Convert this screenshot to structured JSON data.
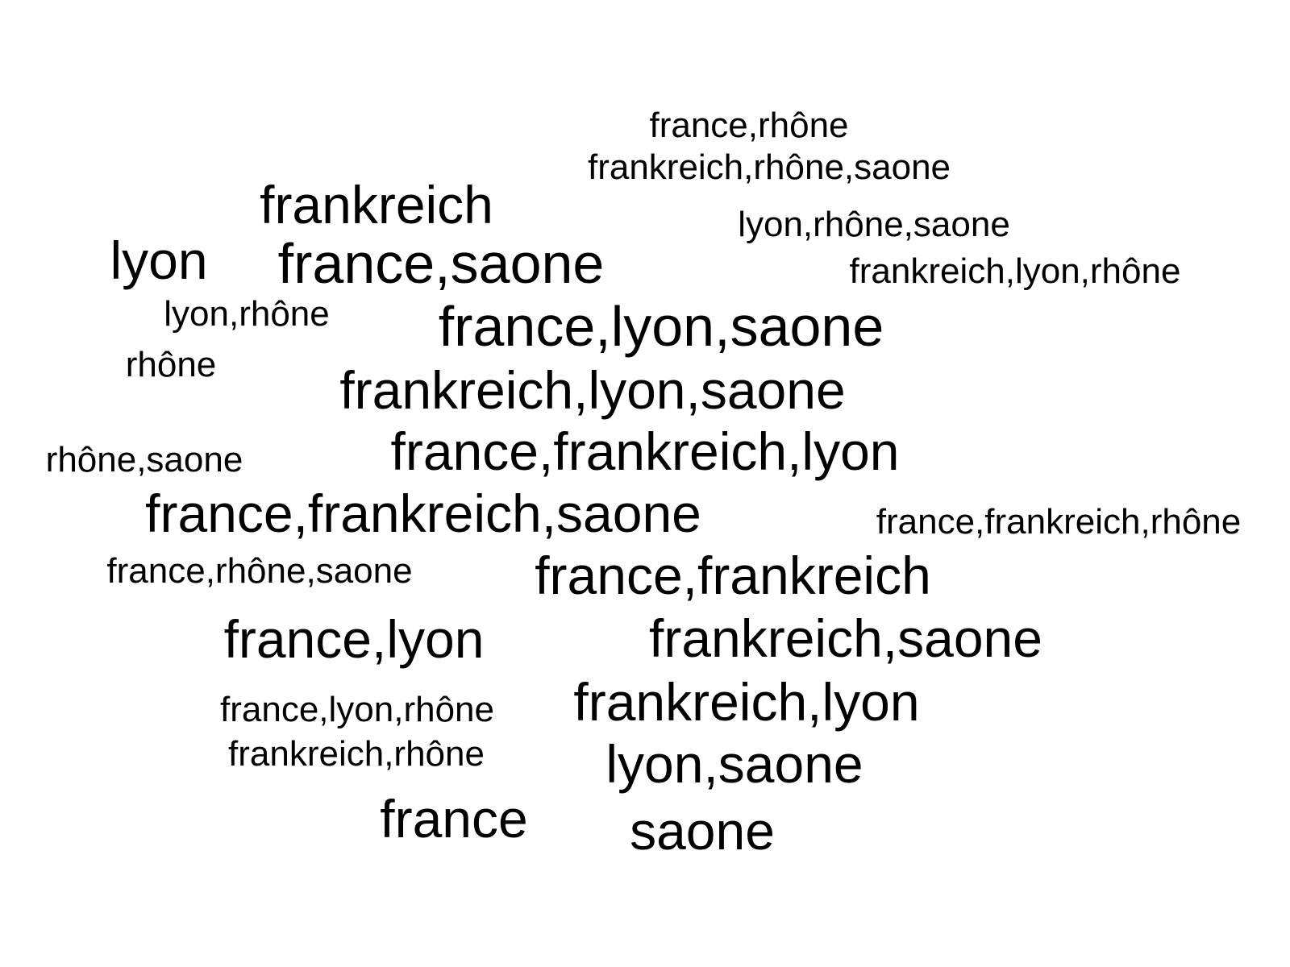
{
  "cloud": {
    "words": [
      {
        "text": "france,rhône"
      },
      {
        "text": "frankreich,rhône,saone"
      },
      {
        "text": "frankreich"
      },
      {
        "text": "lyon,rhône,saone"
      },
      {
        "text": "lyon"
      },
      {
        "text": "france,saone"
      },
      {
        "text": "frankreich,lyon,rhône"
      },
      {
        "text": "lyon,rhône"
      },
      {
        "text": "france,lyon,saone"
      },
      {
        "text": "rhône"
      },
      {
        "text": "frankreich,lyon,saone"
      },
      {
        "text": "rhône,saone"
      },
      {
        "text": "france,frankreich,lyon"
      },
      {
        "text": "france,frankreich,saone"
      },
      {
        "text": "france,frankreich,rhône"
      },
      {
        "text": "france,rhône,saone"
      },
      {
        "text": "france,frankreich"
      },
      {
        "text": "france,lyon"
      },
      {
        "text": "frankreich,saone"
      },
      {
        "text": "france,lyon,rhône"
      },
      {
        "text": "frankreich,lyon"
      },
      {
        "text": "frankreich,rhône"
      },
      {
        "text": "lyon,saone"
      },
      {
        "text": "france"
      },
      {
        "text": "saone"
      }
    ]
  },
  "colors": {
    "background": "#ffffff",
    "text": "#000000"
  }
}
